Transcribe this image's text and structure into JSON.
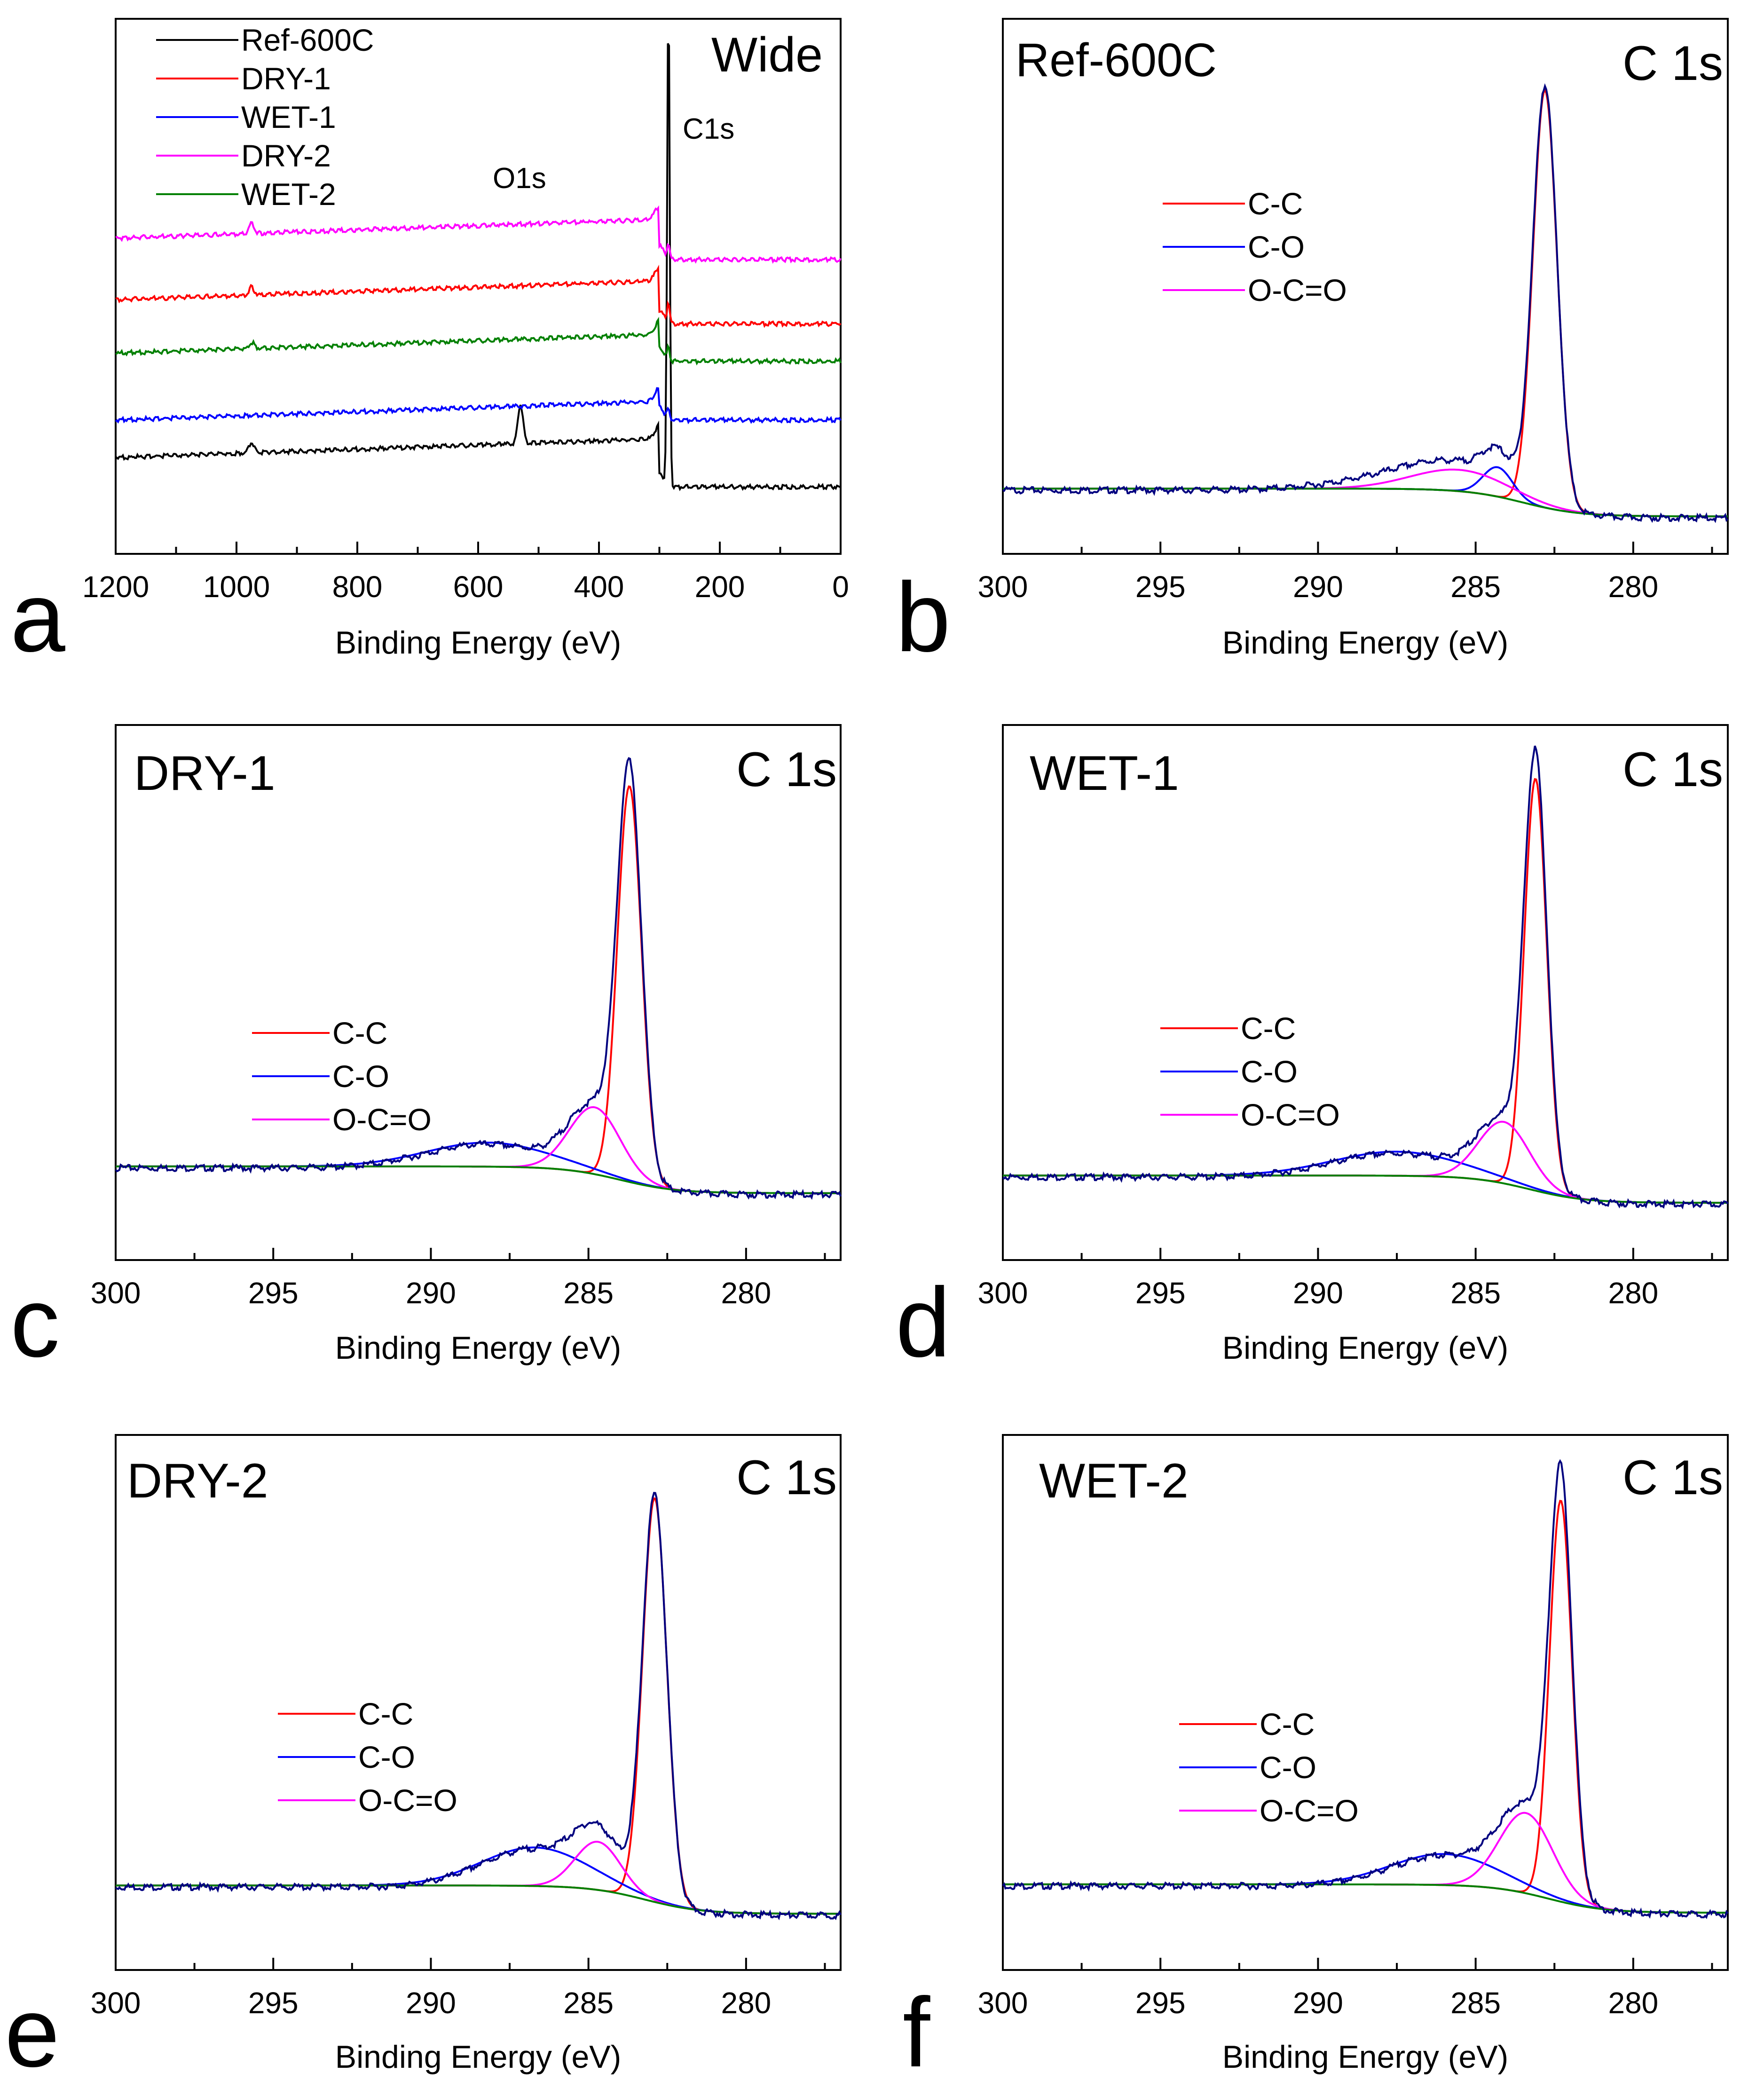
{
  "figure": {
    "colors": {
      "black": "#000000",
      "red": "#ff0000",
      "blue": "#0000ff",
      "magenta": "#ff00ff",
      "green": "#008000",
      "navy": "#00007f"
    }
  },
  "chart_data": [
    {
      "type": "line",
      "panel": "a",
      "title": "Wide",
      "xlabel": "Binding Energy (eV)",
      "ylabel": "",
      "xlim": [
        1200,
        0
      ],
      "x_reversed": true,
      "xticks": [
        1200,
        1000,
        800,
        600,
        400,
        200,
        0
      ],
      "y_axis_visible": false,
      "ylim": [
        0,
        10
      ],
      "legend_position": "top-left",
      "annotations": [
        {
          "text": "O1s",
          "x": 520,
          "y": 6.9
        },
        {
          "text": "C1s",
          "x": 235,
          "y": 7.9
        }
      ],
      "series": [
        {
          "name": "Ref-600C",
          "color": "#000000",
          "baseline_high_be": 1.95,
          "baseline_low_be": 1.25,
          "peaks": [
            {
              "be": 975,
              "h": 0.2
            },
            {
              "be": 530,
              "h": 0.75
            },
            {
              "be": 285,
              "h": 9.2
            }
          ]
        },
        {
          "name": "DRY-1",
          "color": "#ff0000",
          "baseline_high_be": 4.9,
          "baseline_low_be": 4.3,
          "peaks": [
            {
              "be": 975,
              "h": 0.15
            },
            {
              "be": 285,
              "h": 0.4
            }
          ]
        },
        {
          "name": "WET-1",
          "color": "#0000ff",
          "baseline_high_be": 2.65,
          "baseline_low_be": 2.5,
          "peaks": [
            {
              "be": 285,
              "h": 0.2
            }
          ]
        },
        {
          "name": "DRY-2",
          "color": "#ff00ff",
          "baseline_high_be": 6.05,
          "baseline_low_be": 5.5,
          "peaks": [
            {
              "be": 975,
              "h": 0.2
            },
            {
              "be": 285,
              "h": 0.3
            }
          ]
        },
        {
          "name": "WET-2",
          "color": "#008000",
          "baseline_high_be": 3.9,
          "baseline_low_be": 3.6,
          "peaks": [
            {
              "be": 975,
              "h": 0.12
            },
            {
              "be": 285,
              "h": 0.25
            }
          ]
        }
      ]
    },
    {
      "type": "line",
      "panel": "b",
      "title": "C 1s",
      "sample": "Ref-600C",
      "xlabel": "Binding Energy (eV)",
      "xlim": [
        300,
        277
      ],
      "x_reversed": true,
      "xticks": [
        300,
        295,
        290,
        285,
        280
      ],
      "y_axis_visible": false,
      "ylim": [
        0,
        1
      ],
      "legend_position": "center-left",
      "components": [
        {
          "name": "C-C",
          "color": "#ff0000",
          "center": 282.8,
          "height": 0.78,
          "width": 0.45
        },
        {
          "name": "C-O",
          "color": "#0000ff",
          "center": 284.3,
          "height": 0.055,
          "width": 0.55
        },
        {
          "name": "O-C=O",
          "color": "#ff00ff",
          "center": 285.5,
          "height": 0.04,
          "width": 1.8
        }
      ],
      "background": {
        "color": "#008000",
        "y_high_be": 0.122,
        "y_low_be": 0.07,
        "step_center": 283.5
      },
      "envelope": {
        "color": "#00007f",
        "extra_broad": {
          "center": 287.2,
          "height": 0.025,
          "width": 2.5
        }
      }
    },
    {
      "type": "line",
      "panel": "c",
      "title": "C 1s",
      "sample": "DRY-1",
      "xlabel": "Binding Energy (eV)",
      "xlim": [
        300,
        277
      ],
      "x_reversed": true,
      "xticks": [
        300,
        295,
        290,
        285,
        280
      ],
      "y_axis_visible": false,
      "ylim": [
        0,
        1
      ],
      "legend_position": "bottom-left",
      "components": [
        {
          "name": "C-C",
          "color": "#ff0000",
          "center": 283.7,
          "height": 0.74,
          "width": 0.45
        },
        {
          "name": "C-O",
          "color": "#0000ff",
          "center": 288.2,
          "height": 0.045,
          "width": 2.3
        },
        {
          "name": "O-C=O",
          "color": "#ff00ff",
          "center": 284.8,
          "height": 0.125,
          "width": 0.95
        }
      ],
      "background": {
        "color": "#008000",
        "y_high_be": 0.175,
        "y_low_be": 0.125,
        "step_center": 284.0
      },
      "envelope": {
        "color": "#00007f"
      }
    },
    {
      "type": "line",
      "panel": "d",
      "title": "C 1s",
      "sample": "WET-1",
      "xlabel": "Binding Energy (eV)",
      "xlim": [
        300,
        277
      ],
      "x_reversed": true,
      "xticks": [
        300,
        295,
        290,
        285,
        280
      ],
      "y_axis_visible": false,
      "ylim": [
        0,
        1
      ],
      "legend_position": "bottom-left",
      "components": [
        {
          "name": "C-C",
          "color": "#ff0000",
          "center": 283.1,
          "height": 0.77,
          "width": 0.42
        },
        {
          "name": "C-O",
          "color": "#0000ff",
          "center": 287.5,
          "height": 0.045,
          "width": 2.4
        },
        {
          "name": "O-C=O",
          "color": "#ff00ff",
          "center": 284.1,
          "height": 0.115,
          "width": 0.95
        }
      ],
      "background": {
        "color": "#008000",
        "y_high_be": 0.158,
        "y_low_be": 0.107,
        "step_center": 283.3
      },
      "envelope": {
        "color": "#00007f"
      }
    },
    {
      "type": "line",
      "panel": "e",
      "title": "C 1s",
      "sample": "DRY-2",
      "xlabel": "Binding Energy (eV)",
      "xlim": [
        300,
        277
      ],
      "x_reversed": true,
      "xticks": [
        300,
        295,
        290,
        285,
        280
      ],
      "y_axis_visible": false,
      "ylim": [
        0,
        1
      ],
      "legend_position": "bottom-left",
      "components": [
        {
          "name": "C-C",
          "color": "#ff0000",
          "center": 282.9,
          "height": 0.755,
          "width": 0.45
        },
        {
          "name": "C-O",
          "color": "#0000ff",
          "center": 286.7,
          "height": 0.072,
          "width": 2.0
        },
        {
          "name": "O-C=O",
          "color": "#ff00ff",
          "center": 284.7,
          "height": 0.09,
          "width": 0.85
        }
      ],
      "background": {
        "color": "#008000",
        "y_high_be": 0.158,
        "y_low_be": 0.105,
        "step_center": 283.2
      },
      "envelope": {
        "color": "#00007f"
      }
    },
    {
      "type": "line",
      "panel": "f",
      "title": "C 1s",
      "sample": "WET-2",
      "xlabel": "Binding Energy (eV)",
      "xlim": [
        300,
        277
      ],
      "x_reversed": true,
      "xticks": [
        300,
        295,
        290,
        285,
        280
      ],
      "y_axis_visible": false,
      "ylim": [
        0,
        1
      ],
      "legend_position": "bottom-left",
      "components": [
        {
          "name": "C-C",
          "color": "#ff0000",
          "center": 282.3,
          "height": 0.75,
          "width": 0.42
        },
        {
          "name": "C-O",
          "color": "#0000ff",
          "center": 286.0,
          "height": 0.058,
          "width": 2.0
        },
        {
          "name": "O-C=O",
          "color": "#ff00ff",
          "center": 283.4,
          "height": 0.15,
          "width": 1.0
        }
      ],
      "background": {
        "color": "#008000",
        "y_high_be": 0.16,
        "y_low_be": 0.107,
        "step_center": 282.7
      },
      "envelope": {
        "color": "#00007f"
      }
    }
  ]
}
